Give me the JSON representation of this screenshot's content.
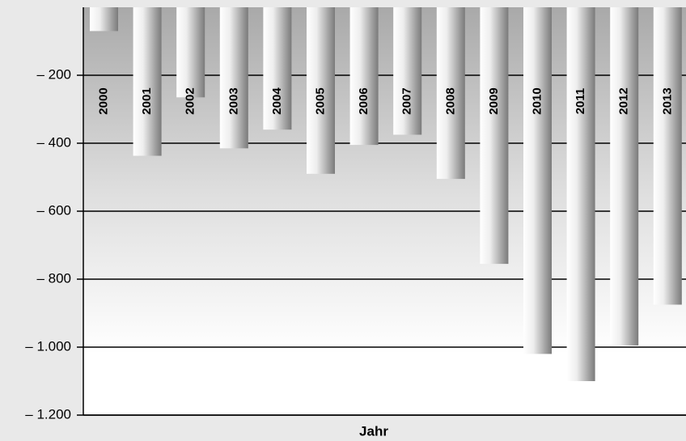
{
  "chart_data": {
    "type": "bar",
    "x_label": "Jahr",
    "categories": [
      "2000",
      "2001",
      "2002",
      "2003",
      "2004",
      "2005",
      "2006",
      "2007",
      "2008",
      "2009",
      "2010",
      "2011",
      "2012",
      "2013"
    ],
    "values": [
      -70,
      -437,
      -265,
      -415,
      -360,
      -490,
      -405,
      -375,
      -505,
      -755,
      -1020,
      -1100,
      -995,
      -875
    ],
    "color": "#7a7a7a",
    "ylim": [
      -1200,
      0
    ],
    "yticks": [
      {
        "value": -200,
        "label": "– 200"
      },
      {
        "value": -400,
        "label": "– 400"
      },
      {
        "value": -600,
        "label": "– 600"
      },
      {
        "value": -800,
        "label": "– 800"
      },
      {
        "value": -1000,
        "label": "– 1.000"
      },
      {
        "value": -1200,
        "label": "– 1.200"
      }
    ],
    "grid": true
  }
}
